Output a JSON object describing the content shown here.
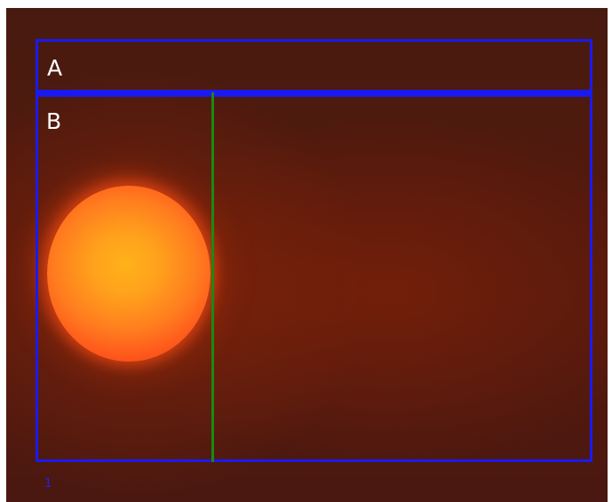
{
  "image": {
    "region_labels": {
      "a": "A",
      "b": "B"
    },
    "frame_number": "1",
    "colors": {
      "background": "#52190d",
      "colony": "#ffa01c",
      "region_box": "#1a1aee",
      "marker_line": "#1a8a12",
      "label_text": "#ffffff",
      "frame_number": "#2020ff"
    }
  }
}
